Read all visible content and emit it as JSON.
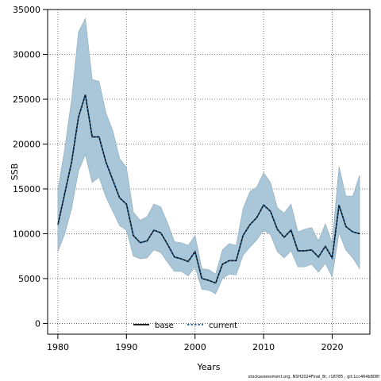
{
  "chart_data": {
    "type": "line",
    "title": "",
    "xlabel": "Years",
    "ylabel": "SSB",
    "xlim": [
      1978.5,
      2025.5
    ],
    "ylim": [
      -1200,
      35000
    ],
    "x_ticks": [
      1980,
      1990,
      2000,
      2010,
      2020
    ],
    "y_ticks": [
      0,
      5000,
      10000,
      15000,
      20000,
      25000,
      30000,
      35000
    ],
    "grid": true,
    "legend_position": "bottom-center",
    "x": [
      1980,
      1981,
      1982,
      1983,
      1984,
      1985,
      1986,
      1987,
      1988,
      1989,
      1990,
      1991,
      1992,
      1993,
      1994,
      1995,
      1996,
      1997,
      1998,
      1999,
      2000,
      2001,
      2002,
      2003,
      2004,
      2005,
      2006,
      2007,
      2008,
      2009,
      2010,
      2011,
      2012,
      2013,
      2014,
      2015,
      2016,
      2017,
      2018,
      2019,
      2020,
      2021,
      2022,
      2023,
      2024
    ],
    "series": [
      {
        "name": "base",
        "style": "solid",
        "color": "#000000",
        "values": [
          11000,
          14500,
          18000,
          23000,
          25500,
          20800,
          20800,
          18000,
          16000,
          14000,
          13300,
          9800,
          9000,
          9200,
          10400,
          10100,
          8800,
          7400,
          7200,
          6900,
          8000,
          5000,
          4800,
          4500,
          6600,
          7000,
          7000,
          9800,
          11000,
          11800,
          13200,
          12500,
          10500,
          9600,
          10400,
          8100,
          8100,
          8200,
          7400,
          8600,
          7300,
          13200,
          10800,
          10200,
          10000
        ]
      },
      {
        "name": "current",
        "style": "dashed",
        "color": "#1f5a8a",
        "values": [
          11000,
          14500,
          18000,
          23000,
          25500,
          20800,
          20800,
          18000,
          16000,
          14000,
          13300,
          9800,
          9000,
          9200,
          10400,
          10100,
          8800,
          7400,
          7200,
          6900,
          8000,
          5000,
          4800,
          4500,
          6600,
          7000,
          7000,
          9800,
          11000,
          11800,
          13200,
          12500,
          10500,
          9600,
          10400,
          8100,
          8100,
          8200,
          7400,
          8600,
          7300,
          13200,
          10800,
          10200,
          10000
        ]
      }
    ],
    "band": {
      "color": "#a9c7d8",
      "upper": [
        14900,
        19500,
        25000,
        32500,
        34000,
        27200,
        27000,
        23500,
        21500,
        18400,
        17400,
        12400,
        11500,
        11900,
        13300,
        13000,
        11200,
        9100,
        9000,
        8700,
        9800,
        6100,
        6000,
        5500,
        8200,
        8900,
        8700,
        12800,
        14700,
        15200,
        16800,
        15700,
        12900,
        12300,
        13300,
        10200,
        10500,
        10700,
        9200,
        11100,
        9000,
        17500,
        14200,
        14200,
        16500
      ],
      "lower": [
        8000,
        10000,
        12800,
        17000,
        18800,
        15700,
        16300,
        14100,
        12500,
        10900,
        10400,
        7500,
        7200,
        7300,
        8200,
        7900,
        6800,
        5800,
        5800,
        5300,
        6300,
        3800,
        3700,
        3300,
        5000,
        5500,
        5400,
        7600,
        8500,
        9300,
        10400,
        9900,
        8000,
        7300,
        8100,
        6300,
        6300,
        6600,
        5700,
        6700,
        5200,
        10100,
        8200,
        7300,
        6100
      ]
    }
  },
  "footer": {
    "source_text": "stockassessment.org, NSH2024Final_8r, r18785 , git:1cc464b808f"
  }
}
